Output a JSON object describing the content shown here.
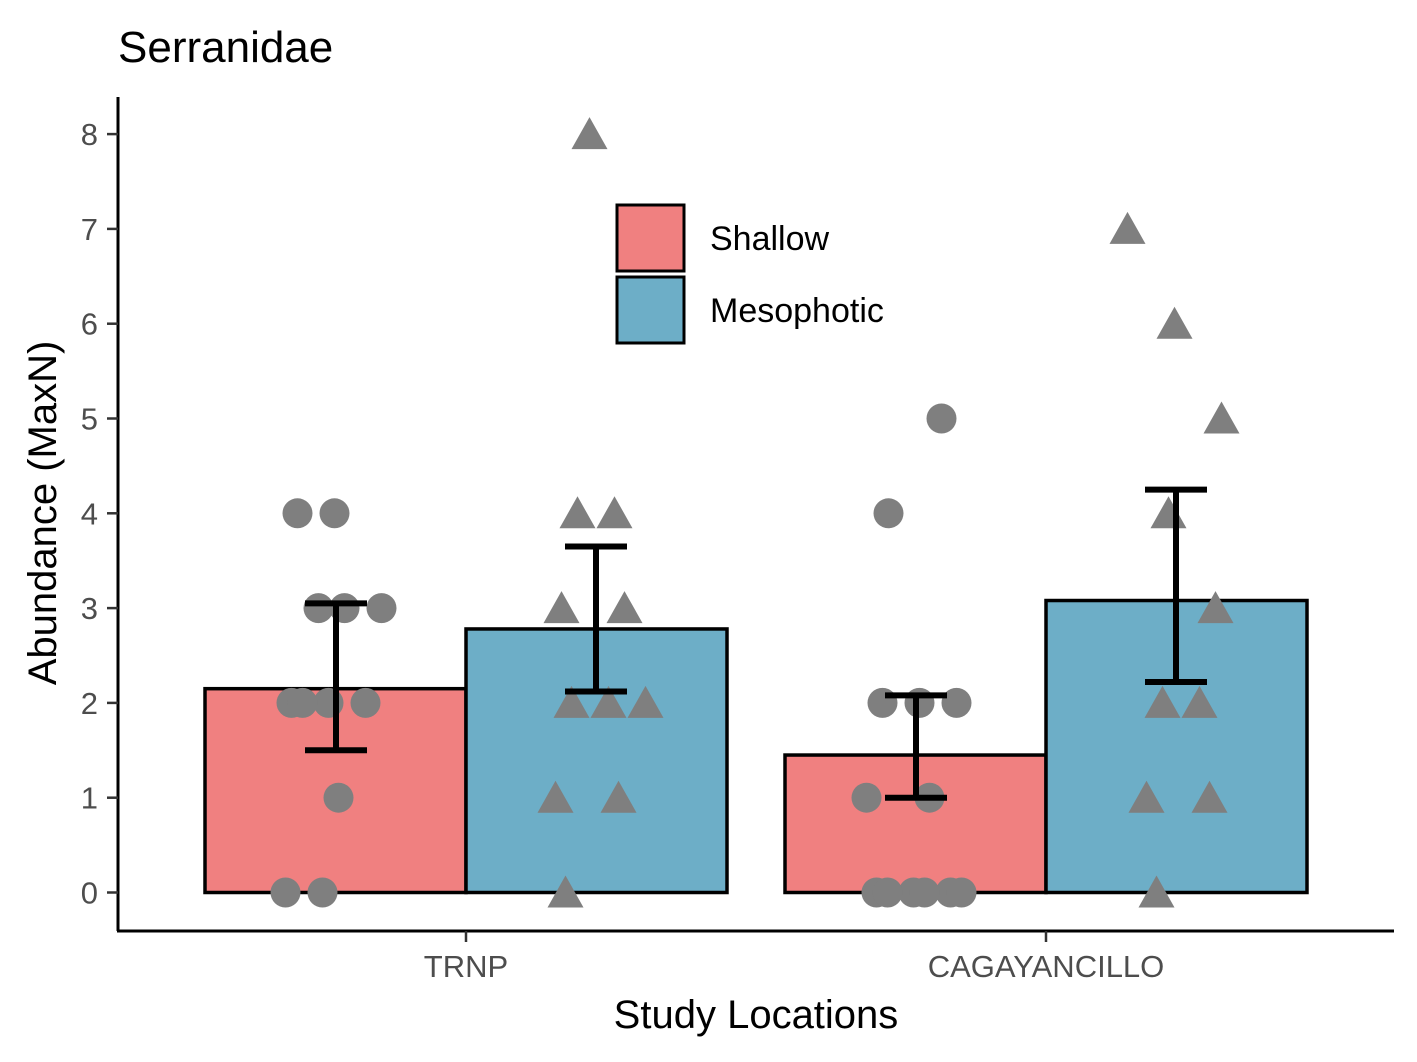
{
  "chart_data": {
    "type": "bar",
    "title": "Serranidae",
    "xlabel": "Study Locations",
    "ylabel": "Abundance (MaxN)",
    "categories": [
      "TRNP",
      "CAGAYANCILLO"
    ],
    "ylim": [
      -0.4,
      8.4
    ],
    "yticks": [
      0,
      1,
      2,
      3,
      4,
      5,
      6,
      7,
      8
    ],
    "grid": false,
    "legend_position": "top-center",
    "series": [
      {
        "name": "Shallow",
        "color": "#F08080",
        "point_shape": "circle",
        "values": [
          2.15,
          1.45
        ],
        "error_low": [
          1.5,
          1.0
        ],
        "error_high": [
          3.05,
          2.08
        ],
        "points": [
          [
            0,
            0,
            1,
            2,
            2,
            2,
            2,
            3,
            3,
            3,
            4,
            4
          ],
          [
            0,
            0,
            0,
            0,
            0,
            0,
            1,
            1,
            2,
            2,
            2,
            4,
            5
          ]
        ]
      },
      {
        "name": "Mesophotic",
        "color": "#6DAEC7",
        "point_shape": "triangle",
        "values": [
          2.78,
          3.08
        ],
        "error_low": [
          2.12,
          2.22
        ],
        "error_high": [
          3.65,
          4.25
        ],
        "points": [
          [
            0,
            1,
            1,
            2,
            2,
            2,
            3,
            3,
            4,
            4,
            8
          ],
          [
            0,
            1,
            1,
            2,
            2,
            3,
            4,
            5,
            6,
            7
          ]
        ]
      }
    ],
    "point_color": "#7F7F7F"
  }
}
